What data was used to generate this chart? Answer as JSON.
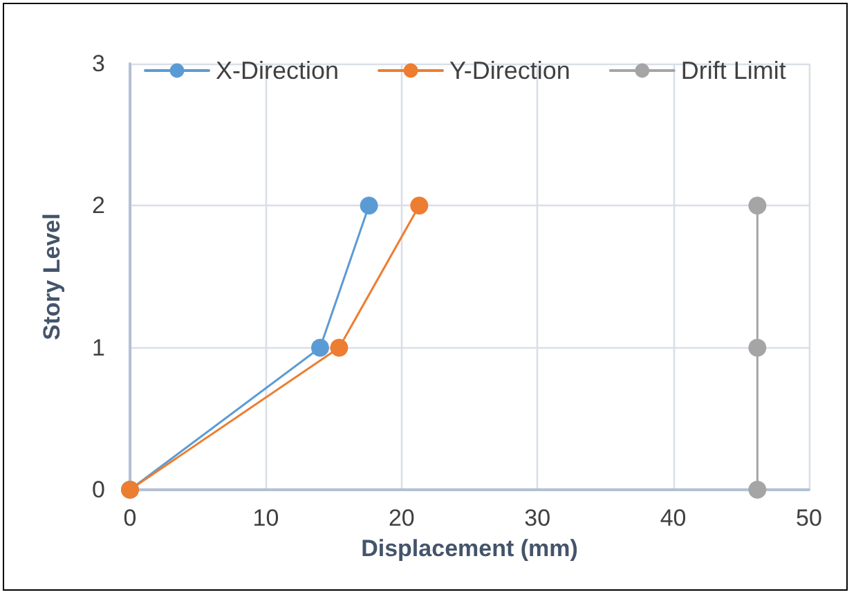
{
  "chart_data": {
    "type": "line",
    "xlabel": "Displacement (mm)",
    "ylabel": "Story Level",
    "series": [
      {
        "name": "X-Direction",
        "color": "#5b9bd5",
        "x": [
          0,
          14.0,
          17.6
        ],
        "values": [
          0,
          1,
          2
        ]
      },
      {
        "name": "Y-Direction",
        "color": "#ed7d31",
        "x": [
          0,
          15.4,
          21.3
        ],
        "values": [
          0,
          1,
          2
        ]
      },
      {
        "name": "Drift Limit",
        "color": "#a5a5a5",
        "x": [
          46.2,
          46.2,
          46.2
        ],
        "values": [
          0,
          1,
          2
        ]
      }
    ],
    "xlim": [
      0,
      50
    ],
    "xticks": [
      0,
      10,
      20,
      30,
      40,
      50
    ],
    "ylim": [
      0,
      3
    ],
    "yticks": [
      0,
      1,
      2,
      3
    ],
    "grid": true,
    "legend": "top",
    "marker": "circle",
    "line_style": "solid"
  }
}
